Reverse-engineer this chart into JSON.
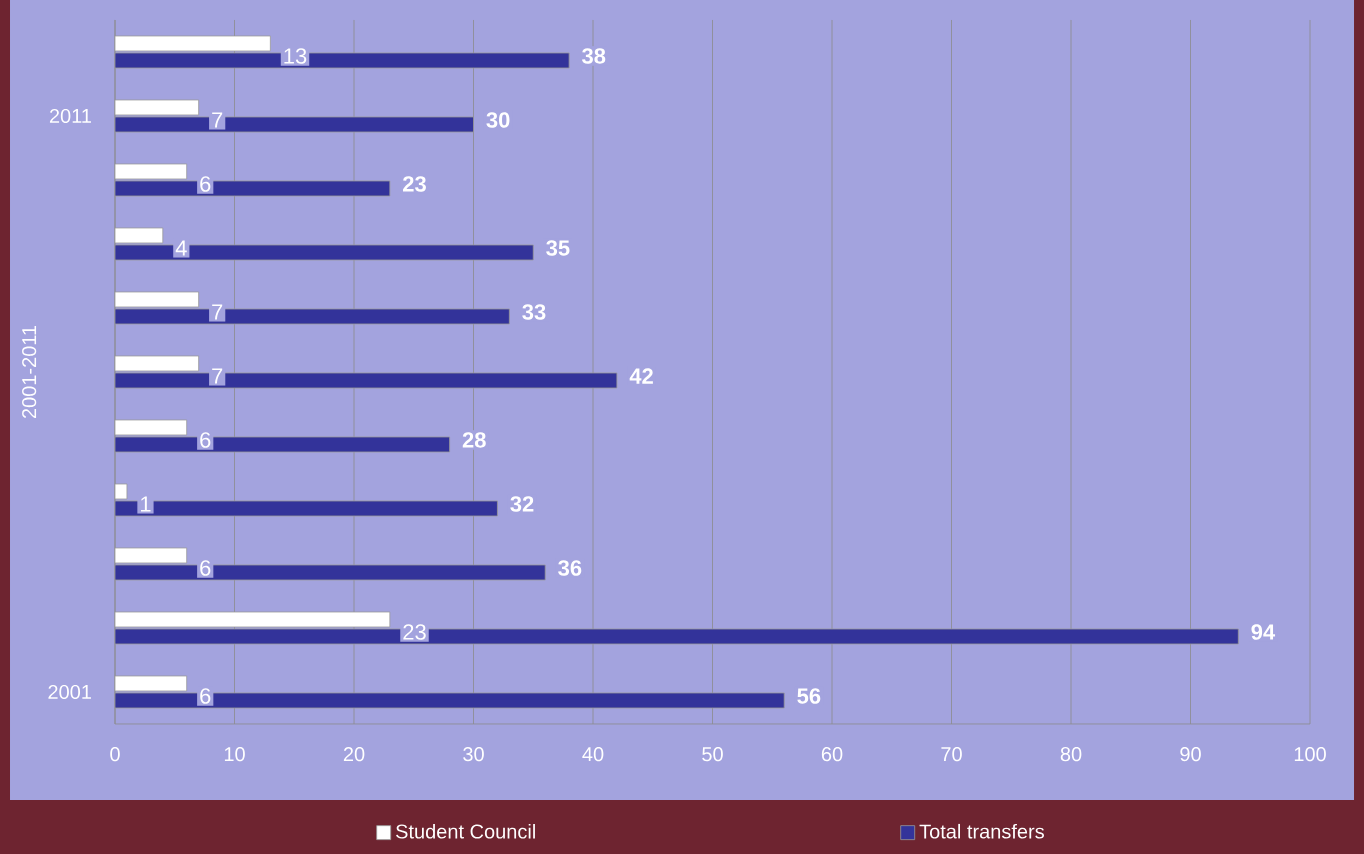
{
  "chart_data": {
    "type": "bar",
    "orientation": "horizontal",
    "ylabel": "2001-2011",
    "categories": [
      null,
      "2011",
      null,
      null,
      null,
      null,
      null,
      null,
      null,
      null,
      "2001"
    ],
    "series": [
      {
        "name": "Student Council",
        "color": "#ffffff",
        "values": [
          13,
          7,
          6,
          4,
          7,
          7,
          6,
          1,
          6,
          23,
          6
        ]
      },
      {
        "name": "Total transfers",
        "color": "#33339a",
        "values": [
          38,
          30,
          23,
          35,
          33,
          42,
          28,
          32,
          36,
          94,
          56
        ]
      }
    ],
    "xlim": [
      0,
      100
    ],
    "xticks": [
      0,
      10,
      20,
      30,
      40,
      50,
      60,
      70,
      80,
      90,
      100
    ],
    "grid": "x",
    "legend": "bottom",
    "data_labels": true
  }
}
